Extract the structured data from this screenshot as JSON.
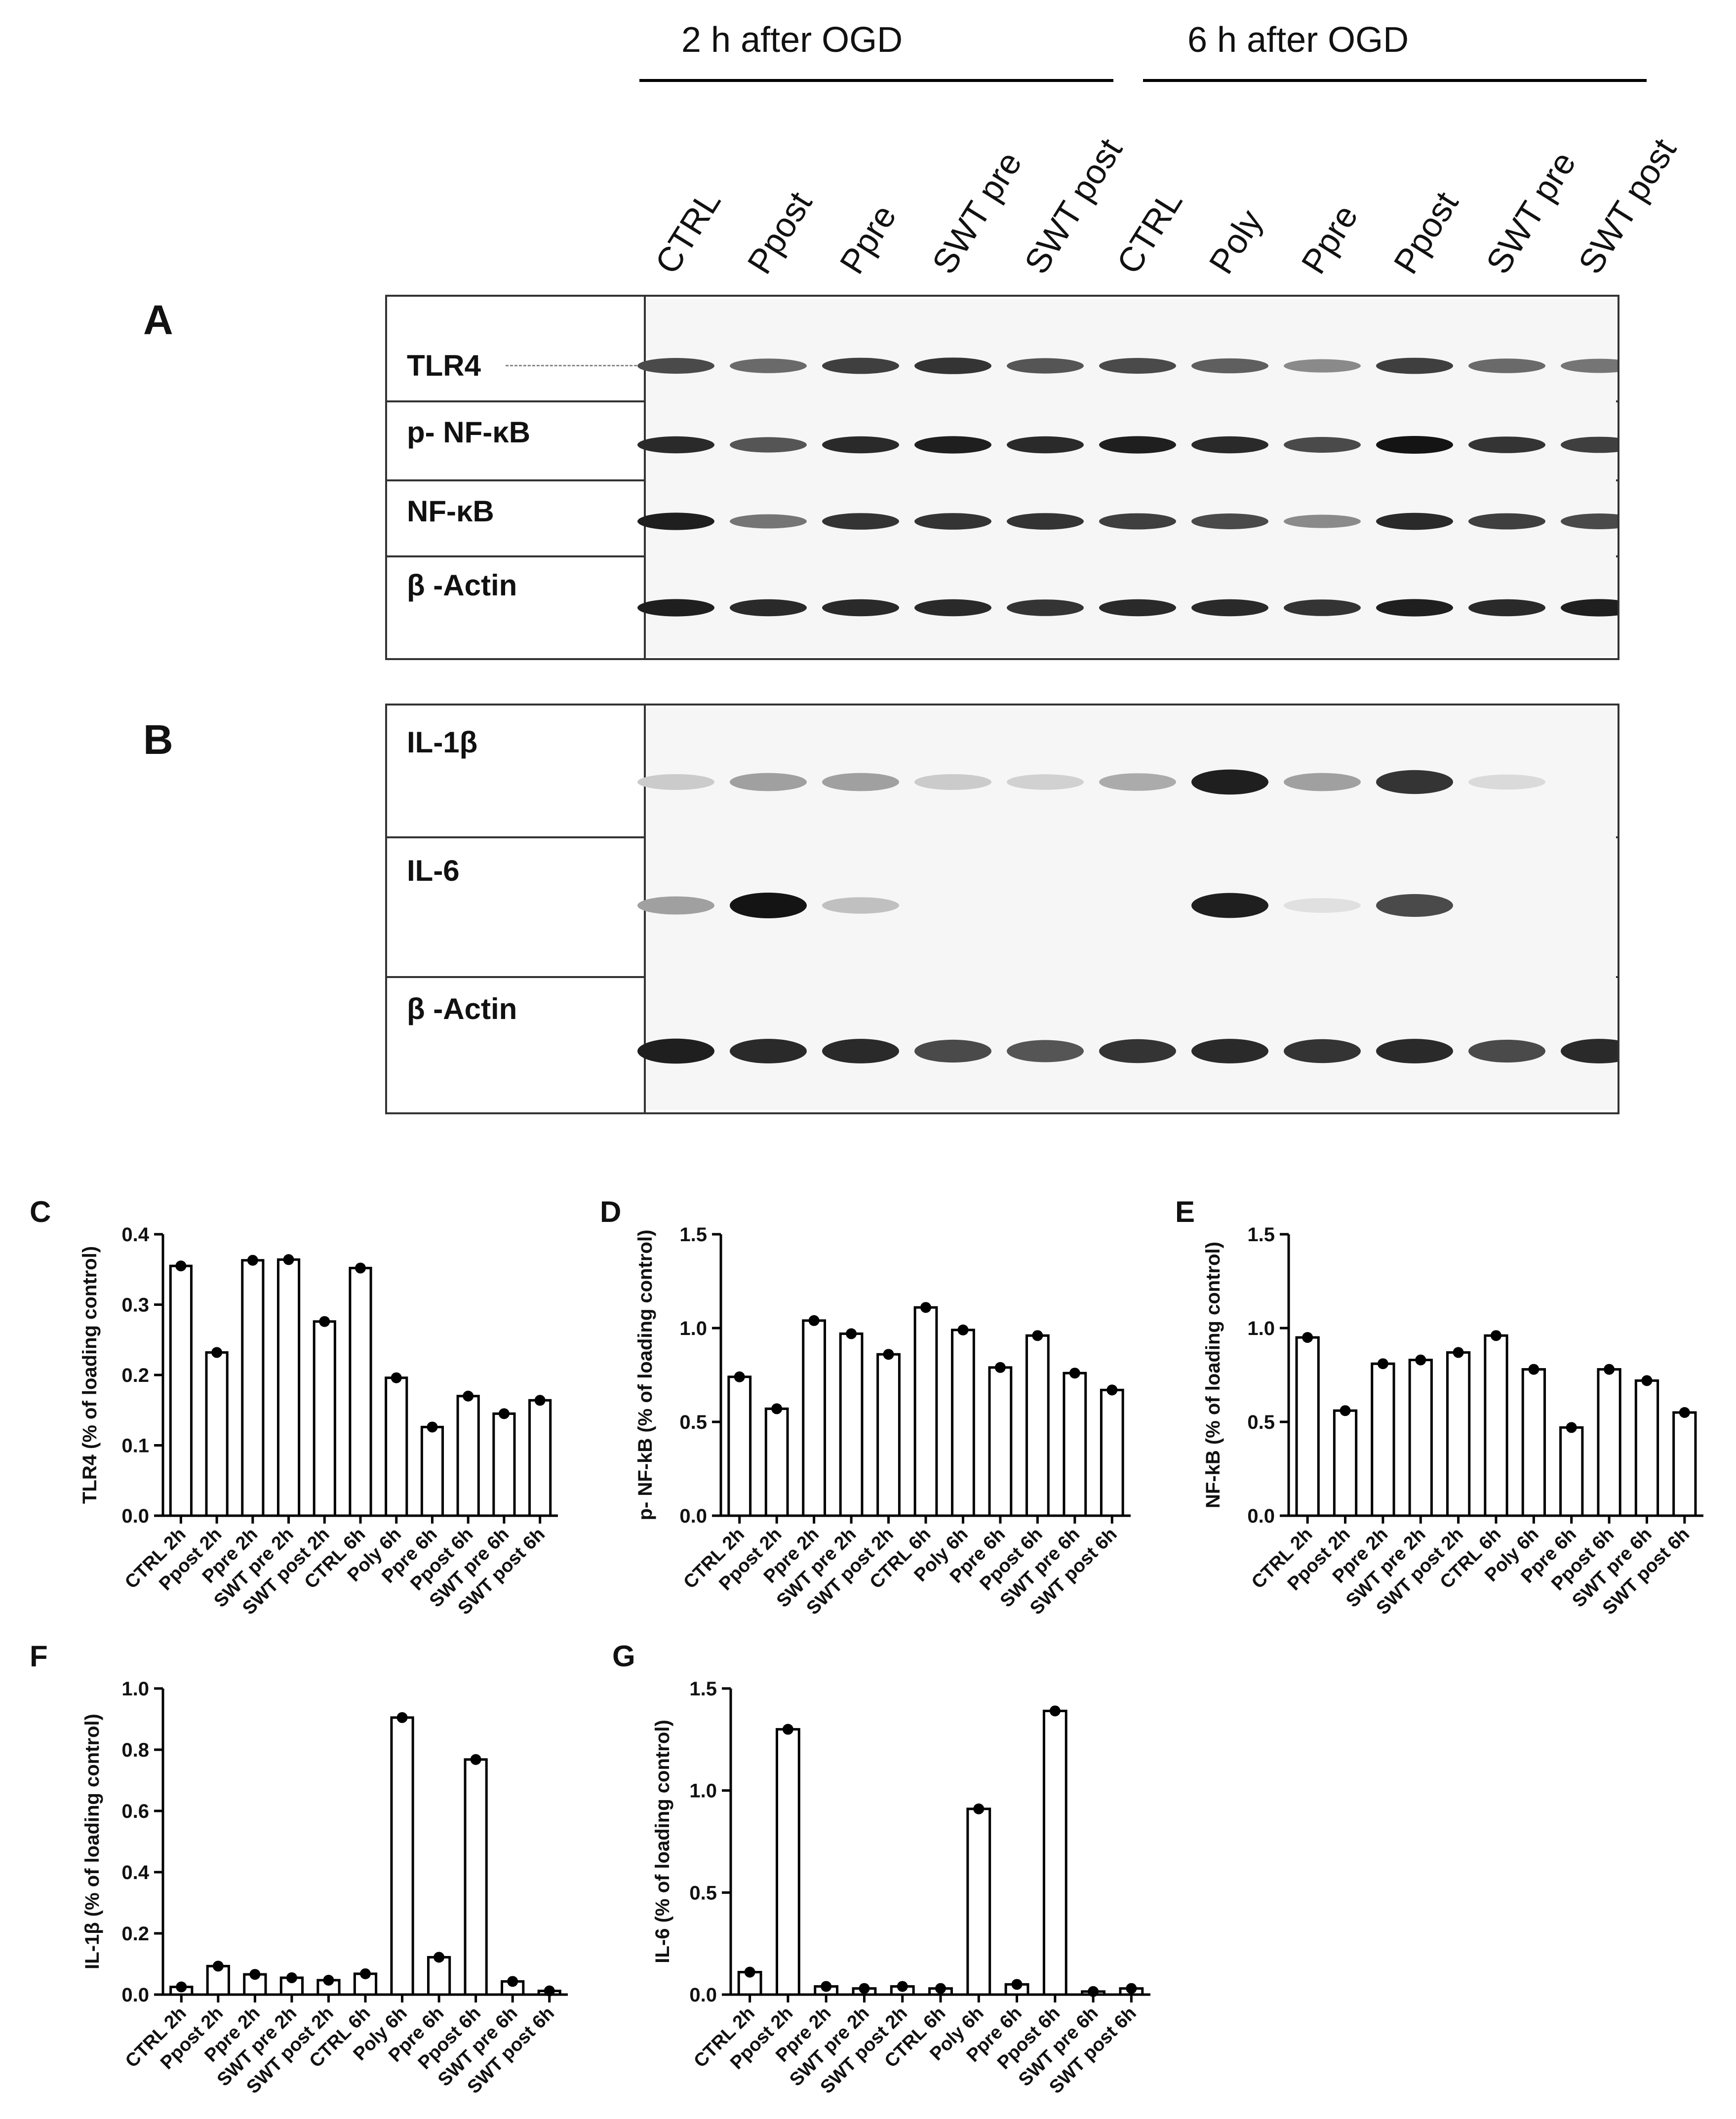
{
  "header": {
    "group_2h": "2 h after OGD",
    "group_6h": "6 h after OGD",
    "lanes": [
      "CTRL",
      "Ppost",
      "Ppre",
      "SWT pre",
      "SWT post",
      "CTRL",
      "Poly",
      "Ppre",
      "Ppost",
      "SWT pre",
      "SWT post"
    ]
  },
  "panel_letters": {
    "A": "A",
    "B": "B",
    "C": "C",
    "D": "D",
    "E": "E",
    "F": "F",
    "G": "G"
  },
  "blot_a": {
    "rows": [
      {
        "label": "TLR4",
        "intensity": [
          0.75,
          0.6,
          0.8,
          0.85,
          0.7,
          0.75,
          0.65,
          0.45,
          0.8,
          0.6,
          0.55
        ]
      },
      {
        "label": "p- NF-κB",
        "intensity": [
          0.9,
          0.7,
          0.9,
          0.95,
          0.9,
          0.95,
          0.9,
          0.75,
          1.0,
          0.85,
          0.8
        ]
      },
      {
        "label": "NF-κB",
        "intensity": [
          0.95,
          0.55,
          0.85,
          0.85,
          0.85,
          0.8,
          0.75,
          0.45,
          0.9,
          0.8,
          0.75
        ]
      },
      {
        "label": "β -Actin",
        "intensity": [
          0.95,
          0.9,
          0.9,
          0.9,
          0.85,
          0.9,
          0.9,
          0.85,
          0.95,
          0.9,
          0.95
        ]
      }
    ]
  },
  "blot_b": {
    "rows": [
      {
        "label": "IL-1β",
        "intensity": [
          0.15,
          0.35,
          0.35,
          0.15,
          0.12,
          0.3,
          0.95,
          0.35,
          0.85,
          0.08,
          0.0
        ]
      },
      {
        "label": "IL-6",
        "intensity": [
          0.35,
          1.0,
          0.2,
          0.0,
          0.0,
          0.0,
          0.95,
          0.05,
          0.75,
          0.0,
          0.0
        ]
      },
      {
        "label": "β -Actin",
        "intensity": [
          0.95,
          0.9,
          0.9,
          0.75,
          0.7,
          0.85,
          0.9,
          0.85,
          0.9,
          0.75,
          0.9
        ]
      }
    ]
  },
  "chart_data": [
    {
      "type": "bar",
      "panel": "C",
      "categories": [
        "CTRL 2h",
        "Ppost 2h",
        "Ppre 2h",
        "SWT pre 2h",
        "SWT post 2h",
        "CTRL 6h",
        "Poly 6h",
        "Ppre 6h",
        "Ppost 6h",
        "SWT pre 6h",
        "SWT post 6h"
      ],
      "values": [
        0.355,
        0.232,
        0.363,
        0.364,
        0.276,
        0.352,
        0.196,
        0.126,
        0.17,
        0.145,
        0.164
      ],
      "ylabel": "TLR4 (% of loading control)",
      "ylim": [
        0,
        0.4
      ],
      "yticks": [
        "0.0",
        "0.1",
        "0.2",
        "0.3",
        "0.4"
      ]
    },
    {
      "type": "bar",
      "panel": "D",
      "categories": [
        "CTRL 2h",
        "Ppost 2h",
        "Ppre 2h",
        "SWT pre 2h",
        "SWT post 2h",
        "CTRL 6h",
        "Poly 6h",
        "Ppre 6h",
        "Ppost 6h",
        "SWT pre 6h",
        "SWT post 6h"
      ],
      "values": [
        0.74,
        0.57,
        1.04,
        0.97,
        0.86,
        1.11,
        0.99,
        0.79,
        0.96,
        0.76,
        0.67
      ],
      "ylabel": "p- NF-kB (% of loading control)",
      "ylim": [
        0,
        1.5
      ],
      "yticks": [
        "0.0",
        "0.5",
        "1.0",
        "1.5"
      ]
    },
    {
      "type": "bar",
      "panel": "E",
      "categories": [
        "CTRL 2h",
        "Ppost 2h",
        "Ppre 2h",
        "SWT pre 2h",
        "SWT post 2h",
        "CTRL 6h",
        "Poly 6h",
        "Ppre 6h",
        "Ppost 6h",
        "SWT pre 6h",
        "SWT post 6h"
      ],
      "values": [
        0.95,
        0.56,
        0.81,
        0.83,
        0.87,
        0.96,
        0.78,
        0.47,
        0.78,
        0.72,
        0.55
      ],
      "ylabel": "NF-kB (% of loading control)",
      "ylim": [
        0,
        1.5
      ],
      "yticks": [
        "0.0",
        "0.5",
        "1.0",
        "1.5"
      ]
    },
    {
      "type": "bar",
      "panel": "F",
      "categories": [
        "CTRL 2h",
        "Ppost 2h",
        "Ppre 2h",
        "SWT pre 2h",
        "SWT post 2h",
        "CTRL 6h",
        "Poly 6h",
        "Ppre 6h",
        "Ppost 6h",
        "SWT pre 6h",
        "SWT post 6h"
      ],
      "values": [
        0.025,
        0.093,
        0.066,
        0.055,
        0.047,
        0.068,
        0.905,
        0.122,
        0.768,
        0.043,
        0.012
      ],
      "ylabel": "IL-1β (% of loading control)",
      "ylim": [
        0,
        1.0
      ],
      "yticks": [
        "0.0",
        "0.2",
        "0.4",
        "0.6",
        "0.8",
        "1.0"
      ]
    },
    {
      "type": "bar",
      "panel": "G",
      "categories": [
        "CTRL 2h",
        "Ppost 2h",
        "Ppre 2h",
        "SWT pre 2h",
        "SWT post 2h",
        "CTRL 6h",
        "Poly 6h",
        "Ppre 6h",
        "Ppost 6h",
        "SWT pre 6h",
        "SWT post 6h"
      ],
      "values": [
        0.11,
        1.3,
        0.04,
        0.03,
        0.04,
        0.03,
        0.91,
        0.05,
        1.39,
        0.015,
        0.03
      ],
      "ylabel": "IL-6 (% of loading control)",
      "ylim": [
        0,
        1.5
      ],
      "yticks": [
        "0.0",
        "0.5",
        "1.0",
        "1.5"
      ]
    }
  ]
}
